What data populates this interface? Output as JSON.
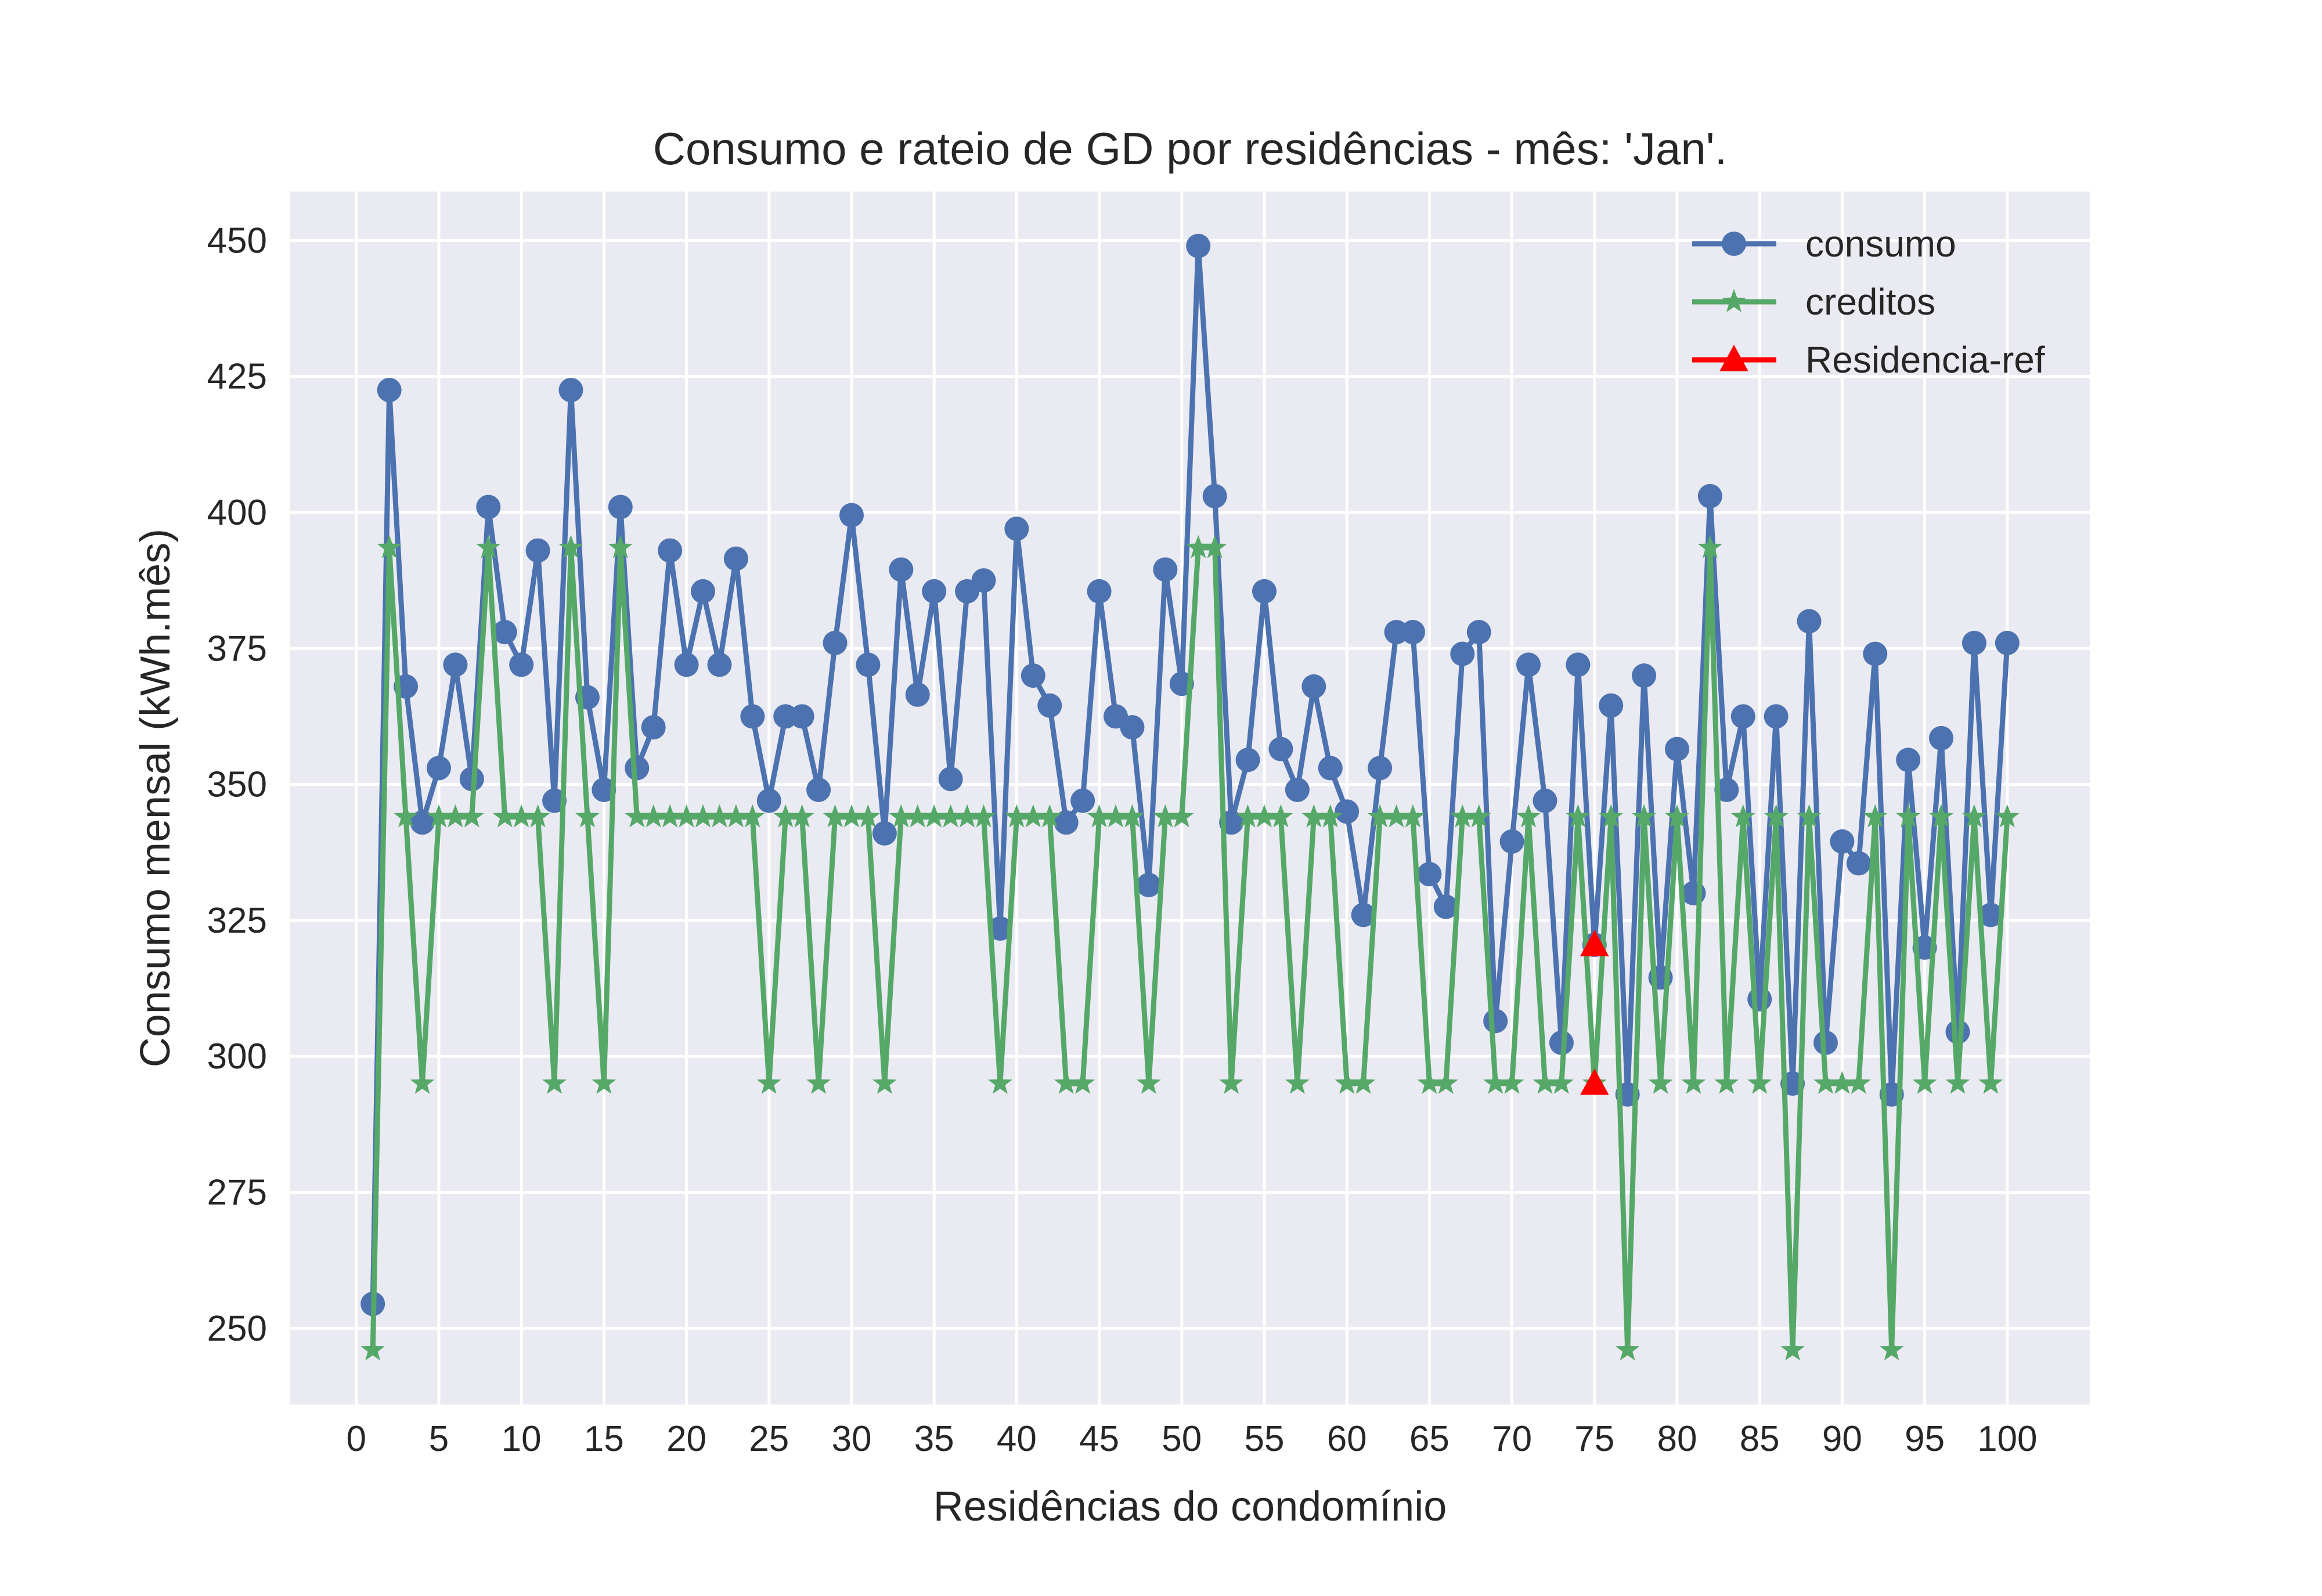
{
  "chart_data": {
    "type": "line",
    "title": "Consumo e rateio de GD por residências - mês: 'Jan'.",
    "xlabel": "Residências do condomínio",
    "ylabel": "Consumo mensal (kWh.mês)",
    "xlim": [
      -4,
      105
    ],
    "ylim": [
      236,
      459
    ],
    "xticks": [
      0,
      5,
      10,
      15,
      20,
      25,
      30,
      35,
      40,
      45,
      50,
      55,
      60,
      65,
      70,
      75,
      80,
      85,
      90,
      95,
      100
    ],
    "yticks": [
      250,
      275,
      300,
      325,
      350,
      375,
      400,
      425,
      450
    ],
    "grid": true,
    "legend_position": "top-right",
    "x": [
      1,
      2,
      3,
      4,
      5,
      6,
      7,
      8,
      9,
      10,
      11,
      12,
      13,
      14,
      15,
      16,
      17,
      18,
      19,
      20,
      21,
      22,
      23,
      24,
      25,
      26,
      27,
      28,
      29,
      30,
      31,
      32,
      33,
      34,
      35,
      36,
      37,
      38,
      39,
      40,
      41,
      42,
      43,
      44,
      45,
      46,
      47,
      48,
      49,
      50,
      51,
      52,
      53,
      54,
      55,
      56,
      57,
      58,
      59,
      60,
      61,
      62,
      63,
      64,
      65,
      66,
      67,
      68,
      69,
      70,
      71,
      72,
      73,
      74,
      75,
      76,
      77,
      78,
      79,
      80,
      81,
      82,
      83,
      84,
      85,
      86,
      87,
      88,
      89,
      90,
      91,
      92,
      93,
      94,
      95,
      96,
      97,
      98,
      99,
      100
    ],
    "series": [
      {
        "name": "consumo",
        "color": "#4c72b0",
        "marker": "circle",
        "values": [
          254.5,
          422.5,
          368,
          343,
          353,
          372,
          351,
          401,
          378,
          372,
          393,
          347,
          422.5,
          366,
          349,
          401,
          353,
          360.5,
          393,
          372,
          385.5,
          372,
          391.5,
          362.5,
          347,
          362.5,
          362.5,
          349,
          376,
          399.5,
          372,
          341,
          389.5,
          366.5,
          385.5,
          351,
          385.5,
          387.5,
          323.5,
          397,
          370,
          364.5,
          343,
          347,
          385.5,
          362.5,
          360.5,
          331.5,
          389.5,
          368.5,
          449,
          403,
          343,
          354.5,
          385.5,
          356.5,
          349,
          368,
          353,
          345,
          326,
          353,
          378,
          378,
          333.5,
          327.5,
          374,
          378,
          306.5,
          339.5,
          372,
          347,
          302.5,
          372,
          320.5,
          364.5,
          293,
          370,
          314.5,
          356.5,
          330,
          403,
          349,
          362.5,
          310.5,
          362.5,
          295,
          380,
          302.5,
          339.5,
          335.5,
          374,
          293,
          354.5,
          320,
          358.5,
          304.5,
          376,
          326,
          376
        ]
      },
      {
        "name": "creditos",
        "color": "#55a868",
        "marker": "star",
        "values": [
          246,
          393.5,
          344,
          295,
          344,
          344,
          344,
          393.5,
          344,
          344,
          344,
          295,
          393.5,
          344,
          295,
          393.5,
          344,
          344,
          344,
          344,
          344,
          344,
          344,
          344,
          295,
          344,
          344,
          295,
          344,
          344,
          344,
          295,
          344,
          344,
          344,
          344,
          344,
          344,
          295,
          344,
          344,
          344,
          295,
          295,
          344,
          344,
          344,
          295,
          344,
          344,
          393.5,
          393.5,
          295,
          344,
          344,
          344,
          295,
          344,
          344,
          295,
          295,
          344,
          344,
          344,
          295,
          295,
          344,
          344,
          295,
          295,
          344,
          295,
          295,
          344,
          295,
          344,
          246,
          344,
          295,
          344,
          295,
          393.5,
          295,
          344,
          295,
          344,
          246,
          344,
          295,
          295,
          295,
          344,
          246,
          344,
          295,
          344,
          295,
          344,
          295,
          344
        ]
      },
      {
        "name": "Residencia-ref",
        "color": "#ff0000",
        "marker": "triangle",
        "points": [
          [
            75,
            320.5
          ],
          [
            75,
            295
          ]
        ]
      }
    ]
  }
}
